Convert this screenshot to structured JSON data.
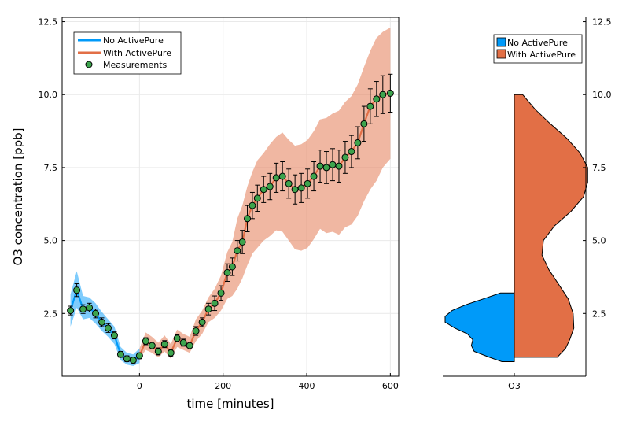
{
  "colors": {
    "no_activepure": "#009af9",
    "with_activepure": "#e26f46",
    "measurements": "#3da44d",
    "axis": "#000000",
    "grid": "#e9e9e9"
  },
  "chart_data": [
    {
      "type": "line",
      "xlabel": "time [minutes]",
      "ylabel": "O3 concentration [ppb]",
      "xlim": [
        -185,
        620
      ],
      "ylim": [
        0.35,
        12.65
      ],
      "x_ticks": [
        0,
        200,
        400,
        600
      ],
      "y_ticks": [
        2.5,
        5.0,
        7.5,
        10.0,
        12.5
      ],
      "x_tick_labels": [
        "0",
        "200",
        "400",
        "600"
      ],
      "y_tick_labels": [
        "2.5",
        "5.0",
        "7.5",
        "10.0",
        "12.5"
      ],
      "grid": true,
      "legend_position": "top-left",
      "legend": [
        "No ActivePure",
        "With ActivePure",
        "Measurements"
      ],
      "series": [
        {
          "name": "No ActivePure",
          "kind": "line-with-band",
          "x": [
            -165,
            -150,
            -135,
            -120,
            -105,
            -90,
            -75,
            -60,
            -45,
            -30,
            -15,
            0
          ],
          "y": [
            2.6,
            3.3,
            2.65,
            2.7,
            2.5,
            2.2,
            2.0,
            1.75,
            1.1,
            0.95,
            0.9,
            1.05
          ],
          "lower": [
            2.05,
            2.7,
            2.3,
            2.35,
            2.15,
            1.9,
            1.7,
            1.45,
            0.9,
            0.75,
            0.7,
            0.8
          ],
          "upper": [
            3.15,
            3.95,
            3.1,
            3.05,
            2.85,
            2.55,
            2.3,
            2.05,
            1.35,
            1.15,
            1.1,
            1.3
          ]
        },
        {
          "name": "With ActivePure",
          "kind": "line-with-band",
          "x": [
            0,
            15,
            30,
            45,
            60,
            75,
            90,
            105,
            120,
            135,
            150,
            165,
            180,
            195,
            210,
            222,
            234,
            246,
            258,
            270,
            282,
            297,
            312,
            327,
            342,
            357,
            372,
            387,
            402,
            417,
            432,
            447,
            462,
            477,
            492,
            507,
            522,
            537,
            552,
            567,
            582,
            600
          ],
          "y": [
            1.05,
            1.55,
            1.4,
            1.2,
            1.45,
            1.15,
            1.65,
            1.5,
            1.4,
            1.9,
            2.2,
            2.65,
            2.85,
            3.2,
            3.9,
            4.1,
            4.65,
            4.95,
            5.75,
            6.2,
            6.45,
            6.75,
            6.85,
            7.15,
            7.2,
            6.95,
            6.75,
            6.8,
            6.95,
            7.2,
            7.55,
            7.5,
            7.6,
            7.55,
            7.85,
            8.05,
            8.35,
            9.0,
            9.6,
            9.85,
            10.0,
            10.05
          ],
          "lower": [
            0.95,
            1.25,
            1.15,
            1.0,
            1.2,
            0.95,
            1.35,
            1.25,
            1.15,
            1.55,
            1.8,
            2.2,
            2.35,
            2.6,
            3.0,
            3.1,
            3.35,
            3.7,
            4.15,
            4.55,
            4.75,
            5.0,
            5.15,
            5.35,
            5.3,
            5.0,
            4.7,
            4.65,
            4.75,
            5.05,
            5.4,
            5.25,
            5.3,
            5.2,
            5.45,
            5.55,
            5.85,
            6.35,
            6.75,
            7.05,
            7.5,
            7.8
          ],
          "upper": [
            1.3,
            1.85,
            1.7,
            1.5,
            1.75,
            1.45,
            1.95,
            1.8,
            1.7,
            2.3,
            2.6,
            3.05,
            3.35,
            3.8,
            4.6,
            4.95,
            5.75,
            6.2,
            6.85,
            7.35,
            7.75,
            8.0,
            8.3,
            8.55,
            8.7,
            8.45,
            8.25,
            8.3,
            8.45,
            8.75,
            9.15,
            9.2,
            9.35,
            9.45,
            9.75,
            9.95,
            10.35,
            10.95,
            11.5,
            11.95,
            12.15,
            12.3
          ]
        },
        {
          "name": "Measurements",
          "kind": "scatter-with-errorbars",
          "x": [
            -165,
            -150,
            -135,
            -120,
            -105,
            -90,
            -75,
            -60,
            -45,
            -30,
            -15,
            0,
            15,
            30,
            45,
            60,
            75,
            90,
            105,
            120,
            135,
            150,
            165,
            180,
            195,
            210,
            222,
            234,
            246,
            258,
            270,
            282,
            297,
            312,
            327,
            342,
            357,
            372,
            387,
            402,
            417,
            432,
            447,
            462,
            477,
            492,
            507,
            522,
            537,
            552,
            567,
            582,
            600
          ],
          "y": [
            2.6,
            3.3,
            2.65,
            2.7,
            2.5,
            2.2,
            2.0,
            1.75,
            1.1,
            0.95,
            0.9,
            1.05,
            1.55,
            1.4,
            1.2,
            1.45,
            1.15,
            1.65,
            1.5,
            1.4,
            1.9,
            2.2,
            2.65,
            2.85,
            3.2,
            3.9,
            4.1,
            4.65,
            4.95,
            5.75,
            6.2,
            6.45,
            6.75,
            6.85,
            7.15,
            7.2,
            6.95,
            6.75,
            6.8,
            6.95,
            7.2,
            7.55,
            7.5,
            7.6,
            7.55,
            7.85,
            8.05,
            8.35,
            9.0,
            9.6,
            9.85,
            10.0,
            10.05
          ],
          "err": [
            0.15,
            0.22,
            0.15,
            0.15,
            0.15,
            0.15,
            0.15,
            0.12,
            0.1,
            0.1,
            0.1,
            0.1,
            0.12,
            0.12,
            0.12,
            0.12,
            0.12,
            0.12,
            0.12,
            0.12,
            0.15,
            0.15,
            0.2,
            0.25,
            0.25,
            0.3,
            0.3,
            0.35,
            0.4,
            0.45,
            0.45,
            0.45,
            0.45,
            0.45,
            0.5,
            0.5,
            0.5,
            0.5,
            0.5,
            0.5,
            0.5,
            0.55,
            0.55,
            0.55,
            0.55,
            0.55,
            0.55,
            0.55,
            0.6,
            0.6,
            0.6,
            0.65,
            0.65
          ]
        }
      ]
    },
    {
      "type": "violin",
      "categories": [
        "O3"
      ],
      "ylim": [
        0.35,
        12.65
      ],
      "y_ticks": [
        2.5,
        5.0,
        7.5,
        10.0,
        12.5
      ],
      "y_tick_labels": [
        "2.5",
        "5.0",
        "7.5",
        "10.0",
        "12.5"
      ],
      "grid": false,
      "legend_position": "top-right",
      "legend": [
        "No ActivePure",
        "With ActivePure"
      ],
      "series": [
        {
          "name": "No ActivePure",
          "side": "left",
          "y": [
            0.85,
            1.0,
            1.2,
            1.4,
            1.6,
            1.8,
            2.0,
            2.2,
            2.4,
            2.6,
            2.8,
            3.0,
            3.2
          ],
          "density": [
            0.18,
            0.36,
            0.58,
            0.62,
            0.6,
            0.68,
            0.86,
            1.0,
            1.0,
            0.9,
            0.7,
            0.45,
            0.2
          ]
        },
        {
          "name": "With ActivePure",
          "side": "right",
          "y": [
            1.0,
            1.3,
            1.6,
            2.0,
            2.5,
            3.0,
            3.5,
            4.0,
            4.5,
            5.0,
            5.5,
            6.0,
            6.5,
            7.0,
            7.5,
            8.0,
            8.5,
            9.0,
            9.5,
            10.0
          ],
          "density": [
            0.62,
            0.74,
            0.8,
            0.86,
            0.85,
            0.78,
            0.64,
            0.5,
            0.4,
            0.42,
            0.58,
            0.82,
            1.0,
            1.06,
            1.06,
            0.95,
            0.76,
            0.52,
            0.3,
            0.12
          ]
        }
      ]
    }
  ]
}
